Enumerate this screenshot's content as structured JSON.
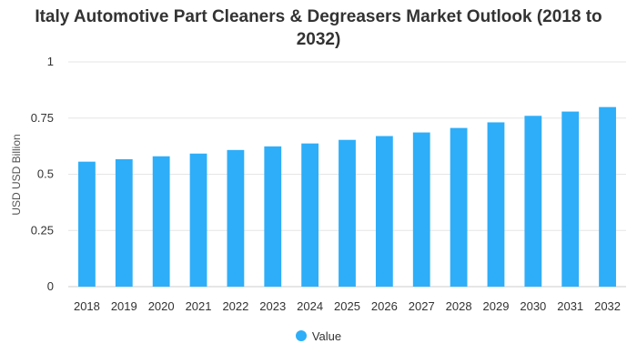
{
  "chart_data": {
    "type": "bar",
    "title": "Italy Automotive Part Cleaners & Degreasers Market Outlook (2018 to 2032)",
    "xlabel": "",
    "ylabel": "USD USD Billion",
    "ylim": [
      0,
      1
    ],
    "yticks": [
      "0",
      "0.25",
      "0.5",
      "0.75",
      "1"
    ],
    "categories": [
      "2018",
      "2019",
      "2020",
      "2021",
      "2022",
      "2023",
      "2024",
      "2025",
      "2026",
      "2027",
      "2028",
      "2029",
      "2030",
      "2031",
      "2032"
    ],
    "series": [
      {
        "name": "Value",
        "values": [
          0.556,
          0.567,
          0.58,
          0.592,
          0.608,
          0.624,
          0.637,
          0.653,
          0.67,
          0.686,
          0.706,
          0.731,
          0.76,
          0.779,
          0.799
        ],
        "color": "#2EAEF8"
      }
    ],
    "grid": true,
    "legend": "bottom-center"
  }
}
